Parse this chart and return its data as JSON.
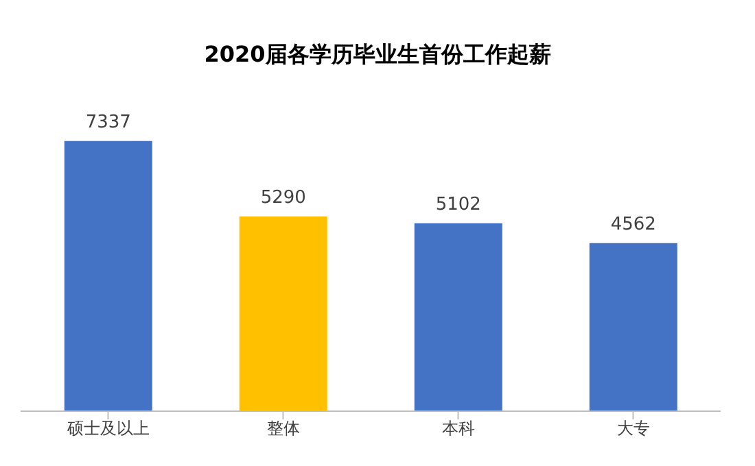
{
  "chart_data": {
    "type": "bar",
    "title": "2020届各学历毕业生首份工作起薪",
    "categories": [
      "硕士及以上",
      "整体",
      "本科",
      "大专"
    ],
    "values": [
      7337,
      5290,
      5102,
      4562
    ],
    "colors": [
      "#4472c4",
      "#ffc000",
      "#4472c4",
      "#4472c4"
    ],
    "data_labels": true,
    "grid": false
  }
}
